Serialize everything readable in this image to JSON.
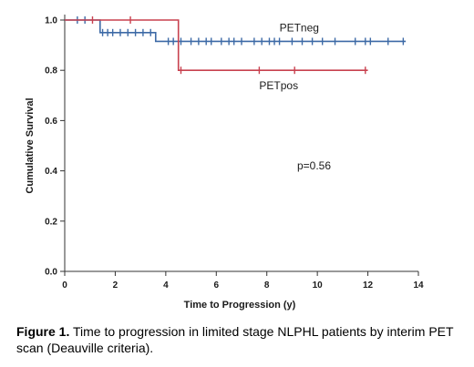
{
  "chart_data": {
    "type": "line",
    "style": "step (Kaplan-Meier)",
    "xlabel": "Time to Progression (y)",
    "ylabel": "Cumulative Survival",
    "xlim": [
      0,
      14
    ],
    "ylim": [
      0,
      1.0
    ],
    "x_ticks": [
      "0",
      "2",
      "4",
      "6",
      "8",
      "10",
      "12",
      "14"
    ],
    "y_ticks": [
      "0.0",
      "0.2",
      "0.4",
      "0.6",
      "0.8",
      "1.0"
    ],
    "grid": false,
    "annotation": "p=0.56",
    "series": [
      {
        "name": "PETneg",
        "color": "#3d6aa6",
        "steps": [
          [
            0,
            1.0
          ],
          [
            1.4,
            0.95
          ],
          [
            3.6,
            0.915
          ]
        ],
        "end_x": 13.5,
        "censored": [
          0.5,
          0.8,
          1.5,
          1.7,
          1.9,
          2.2,
          2.5,
          2.8,
          3.1,
          3.4,
          4.1,
          4.3,
          4.6,
          5.0,
          5.3,
          5.6,
          5.8,
          6.2,
          6.5,
          6.7,
          7.0,
          7.5,
          7.8,
          8.1,
          8.3,
          8.5,
          9.0,
          9.4,
          9.8,
          10.2,
          10.7,
          11.5,
          11.9,
          12.1,
          12.8,
          13.4
        ],
        "label_anchor": [
          8.5,
          0.97
        ]
      },
      {
        "name": "PETpos",
        "color": "#c8414f",
        "steps": [
          [
            0,
            1.0
          ],
          [
            4.5,
            0.8
          ]
        ],
        "end_x": 12.0,
        "censored": [
          1.1,
          2.6,
          4.6,
          7.7,
          9.1,
          11.9
        ],
        "label_anchor": [
          7.7,
          0.74
        ]
      }
    ],
    "annotation_anchor": [
      9.2,
      0.42
    ]
  },
  "caption": {
    "bold": "Figure 1.",
    "text": " Time to progression in limited stage NLPHL patients by interim PET scan (Deauville criteria)."
  }
}
